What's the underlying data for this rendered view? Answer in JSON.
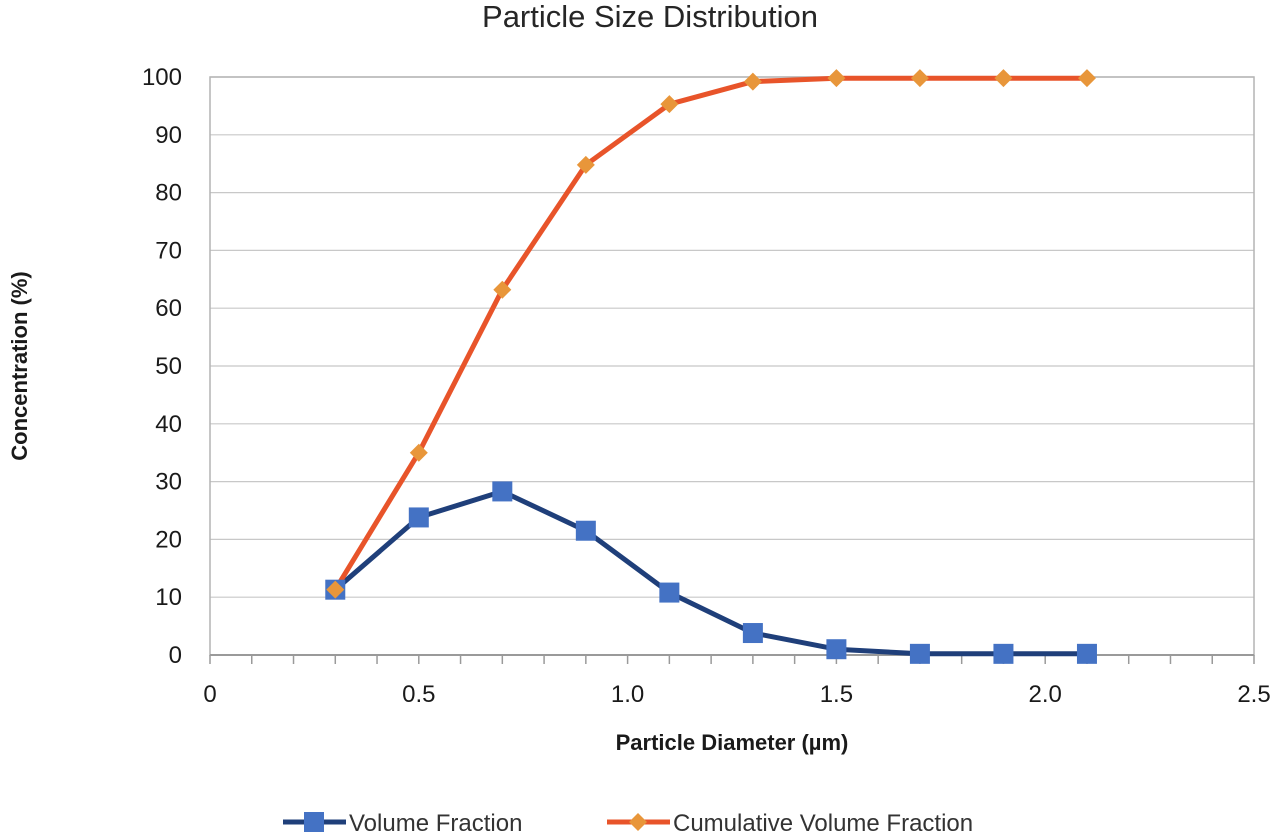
{
  "chart_data": {
    "type": "line",
    "title": "Particle Size Distribution",
    "xlabel": "Particle Diameter (µm)",
    "ylabel": "Concentration (%)",
    "xlim": [
      0,
      2.5
    ],
    "ylim": [
      0,
      100
    ],
    "x_ticks": [
      0,
      0.5,
      1.0,
      1.5,
      2.0,
      2.5
    ],
    "x_tick_labels": [
      "0",
      "0.5",
      "1.0",
      "1.5",
      "2.0",
      "2.5"
    ],
    "y_ticks": [
      0,
      10,
      20,
      30,
      40,
      50,
      60,
      70,
      80,
      90,
      100
    ],
    "y_tick_labels": [
      "0",
      "10",
      "20",
      "30",
      "40",
      "50",
      "60",
      "70",
      "80",
      "90",
      "100"
    ],
    "grid": "horizontal",
    "legend_position": "bottom",
    "series": [
      {
        "name": "Volume Fraction",
        "color": "#1f3f7a",
        "marker_color": "#4472c4",
        "marker": "square",
        "x": [
          0.3,
          0.5,
          0.7,
          0.9,
          1.1,
          1.3,
          1.5,
          1.7,
          1.9,
          2.1
        ],
        "y": [
          11.3,
          23.8,
          28.3,
          21.5,
          10.8,
          3.8,
          1.0,
          0.2,
          0.2,
          0.2
        ]
      },
      {
        "name": "Cumulative Volume Fraction",
        "color": "#e8542a",
        "marker_color": "#e8963a",
        "marker": "diamond",
        "x": [
          0.3,
          0.5,
          0.7,
          0.9,
          1.1,
          1.3,
          1.5,
          1.7,
          1.9,
          2.1
        ],
        "y": [
          11.3,
          35.0,
          63.2,
          84.8,
          95.3,
          99.2,
          99.8,
          99.8,
          99.8,
          99.8
        ]
      }
    ]
  }
}
